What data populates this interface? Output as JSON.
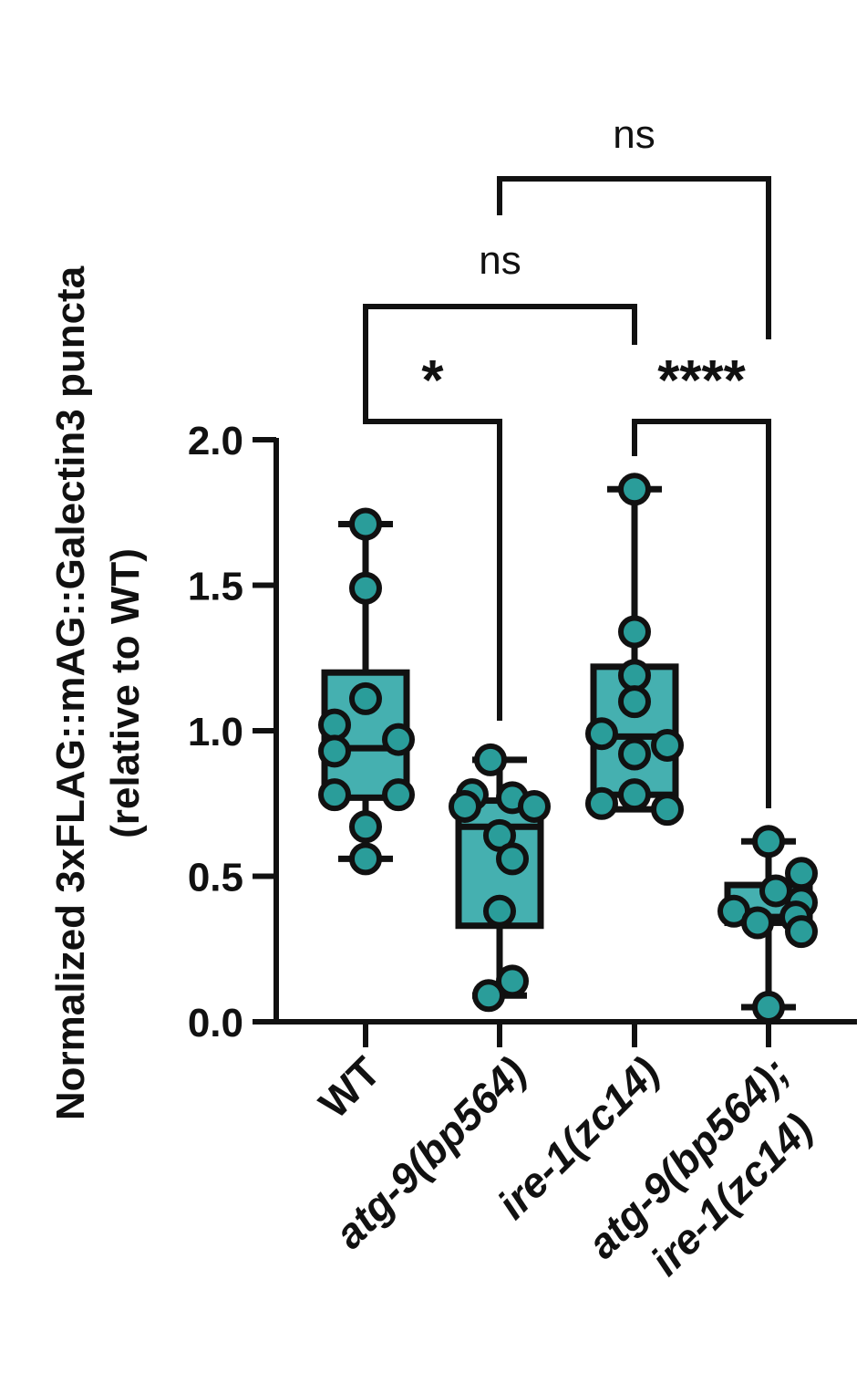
{
  "chart_data": {
    "type": "box",
    "ylabel_line1": "Normalized 3xFLAG::mAG::Galectin3 puncta",
    "ylabel_line2": "(relative to WT)",
    "ylim": [
      0,
      2.0
    ],
    "yticks": [
      "0.0",
      "0.5",
      "1.0",
      "1.5",
      "2.0"
    ],
    "categories": [
      {
        "lines": [
          "WT"
        ],
        "italic": false
      },
      {
        "lines": [
          "atg-9(bp564)"
        ],
        "italic": true
      },
      {
        "lines": [
          "ire-1(zc14)"
        ],
        "italic": true
      },
      {
        "lines": [
          "atg-9(bp564);",
          "ire-1(zc14)"
        ],
        "italic": true
      }
    ],
    "box_color": "#45b0b0",
    "point_color": "#2a9d9a",
    "groups": [
      {
        "min": 0.56,
        "q1": 0.77,
        "median": 0.94,
        "q3": 1.2,
        "max": 1.71,
        "points": [
          1.71,
          1.49,
          1.11,
          1.02,
          0.97,
          0.93,
          0.78,
          0.78,
          0.67,
          0.56
        ]
      },
      {
        "min": 0.09,
        "q1": 0.33,
        "median": 0.67,
        "q3": 0.76,
        "max": 0.9,
        "points": [
          0.9,
          0.78,
          0.77,
          0.74,
          0.74,
          0.64,
          0.56,
          0.38,
          0.14,
          0.09
        ]
      },
      {
        "min": 0.73,
        "q1": 0.78,
        "median": 0.98,
        "q3": 1.22,
        "max": 1.83,
        "points": [
          1.83,
          1.34,
          1.19,
          1.1,
          0.99,
          0.95,
          0.92,
          0.78,
          0.75,
          0.73
        ]
      },
      {
        "min": 0.05,
        "q1": 0.34,
        "median": 0.36,
        "q3": 0.47,
        "max": 0.62,
        "points": [
          0.62,
          0.51,
          0.45,
          0.41,
          0.38,
          0.36,
          0.34,
          0.31,
          0.05
        ]
      }
    ],
    "comparisons": [
      {
        "from": 0,
        "to": 1,
        "label": "*"
      },
      {
        "from": 2,
        "to": 3,
        "label": "****"
      },
      {
        "from": 0,
        "to": 2,
        "label": "ns"
      },
      {
        "from": 1,
        "to": 3,
        "label": "ns"
      }
    ]
  }
}
